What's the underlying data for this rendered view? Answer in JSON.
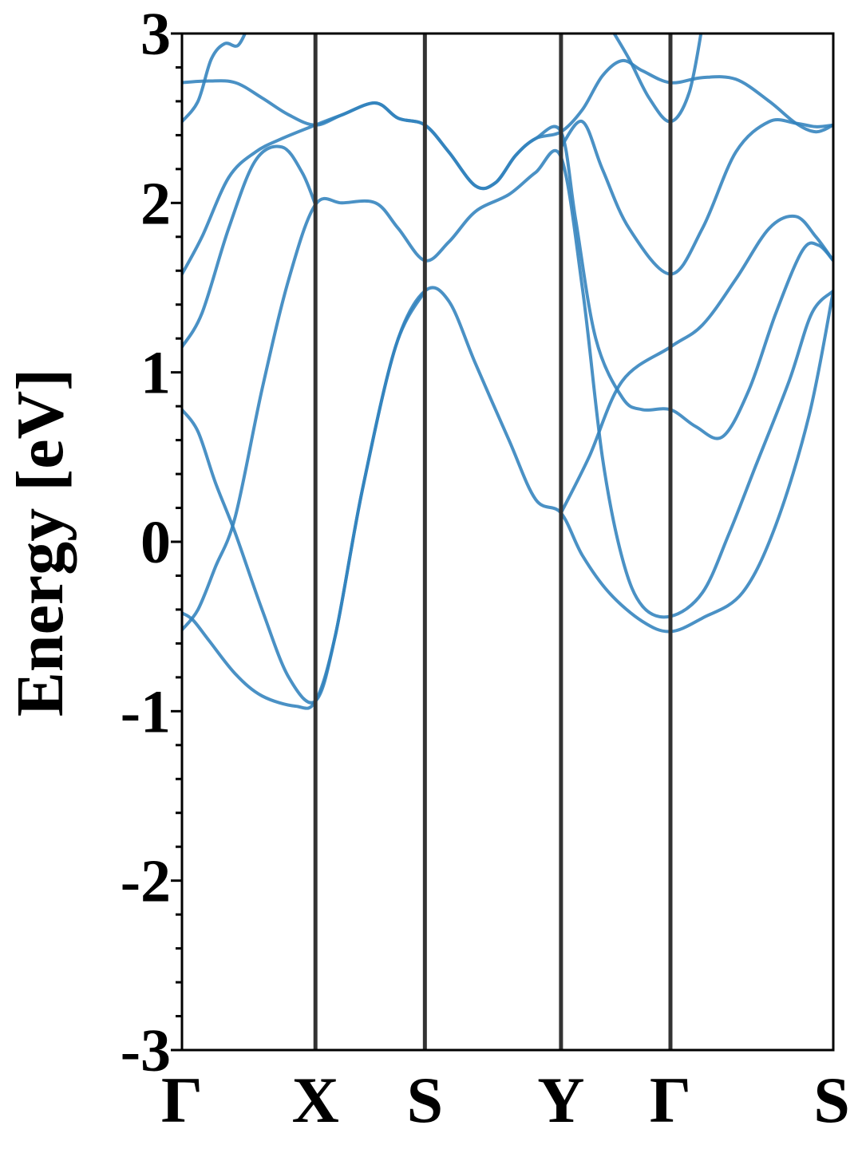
{
  "chart_data": {
    "type": "line",
    "title": "",
    "xlabel": "",
    "ylabel": "Energy [eV]",
    "ylim": [
      -3,
      3
    ],
    "yticks": [
      3,
      2,
      1,
      0,
      -1,
      -2,
      -3
    ],
    "ytick_labels": [
      "3",
      "2",
      "1",
      "0",
      "-1",
      "-2",
      "-3"
    ],
    "y_minor_step": 0.2,
    "xlim": [
      0,
      4.88
    ],
    "kpoints": [
      {
        "label": "Γ",
        "x": 0.0
      },
      {
        "label": "X",
        "x": 1.0
      },
      {
        "label": "S",
        "x": 1.82
      },
      {
        "label": "Y",
        "x": 2.84
      },
      {
        "label": "Γ",
        "x": 3.66
      },
      {
        "label": "S",
        "x": 4.88
      }
    ],
    "grid": false,
    "band_color": "#3182bd",
    "kline_color": "#333333",
    "series": [
      {
        "values": [
          [
            0,
            -0.42
          ],
          [
            0.08,
            -0.46
          ],
          [
            0.2,
            -0.58
          ],
          [
            0.4,
            -0.78
          ],
          [
            0.6,
            -0.91
          ],
          [
            0.85,
            -0.97
          ],
          [
            1.0,
            -0.94
          ],
          [
            1.15,
            -0.55
          ],
          [
            1.35,
            0.3
          ],
          [
            1.6,
            1.15
          ],
          [
            1.82,
            1.48
          ],
          [
            2.0,
            1.42
          ],
          [
            2.2,
            1.05
          ],
          [
            2.45,
            0.6
          ],
          [
            2.65,
            0.25
          ],
          [
            2.84,
            0.17
          ],
          [
            3.0,
            -0.08
          ],
          [
            3.2,
            -0.3
          ],
          [
            3.45,
            -0.47
          ],
          [
            3.66,
            -0.53
          ],
          [
            3.9,
            -0.45
          ],
          [
            4.2,
            -0.3
          ],
          [
            4.45,
            0.1
          ],
          [
            4.7,
            0.75
          ],
          [
            4.88,
            1.48
          ]
        ]
      },
      {
        "values": [
          [
            0,
            0.78
          ],
          [
            0.12,
            0.65
          ],
          [
            0.25,
            0.35
          ],
          [
            0.4,
            0.05
          ],
          [
            0.6,
            -0.4
          ],
          [
            0.8,
            -0.8
          ],
          [
            1.0,
            -0.94
          ],
          [
            1.15,
            -0.55
          ],
          [
            1.35,
            0.3
          ],
          [
            1.6,
            1.15
          ],
          [
            1.82,
            1.48
          ]
        ]
      },
      {
        "values": [
          [
            0,
            -0.52
          ],
          [
            0.12,
            -0.4
          ],
          [
            0.25,
            -0.15
          ],
          [
            0.4,
            0.15
          ],
          [
            0.6,
            0.9
          ],
          [
            0.8,
            1.55
          ],
          [
            1.0,
            1.99
          ],
          [
            1.2,
            2.0
          ],
          [
            1.45,
            2.0
          ],
          [
            1.62,
            1.85
          ],
          [
            1.82,
            1.66
          ],
          [
            2.0,
            1.77
          ],
          [
            2.2,
            1.95
          ],
          [
            2.45,
            2.05
          ],
          [
            2.65,
            2.18
          ],
          [
            2.84,
            2.27
          ],
          [
            3.0,
            1.5
          ],
          [
            3.15,
            0.5
          ],
          [
            3.3,
            -0.1
          ],
          [
            3.45,
            -0.38
          ],
          [
            3.66,
            -0.44
          ],
          [
            3.9,
            -0.3
          ],
          [
            4.1,
            0.05
          ],
          [
            4.3,
            0.45
          ],
          [
            4.55,
            0.95
          ],
          [
            4.72,
            1.35
          ],
          [
            4.88,
            1.48
          ]
        ]
      },
      {
        "values": [
          [
            0,
            1.15
          ],
          [
            0.15,
            1.35
          ],
          [
            0.35,
            1.85
          ],
          [
            0.55,
            2.25
          ],
          [
            0.75,
            2.33
          ],
          [
            0.9,
            2.18
          ],
          [
            1.0,
            1.99
          ]
        ]
      },
      {
        "values": [
          [
            0,
            1.58
          ],
          [
            0.15,
            1.8
          ],
          [
            0.35,
            2.15
          ],
          [
            0.55,
            2.3
          ],
          [
            0.75,
            2.38
          ],
          [
            1.0,
            2.46
          ],
          [
            1.2,
            2.52
          ],
          [
            1.45,
            2.59
          ],
          [
            1.62,
            2.5
          ],
          [
            1.82,
            2.46
          ],
          [
            2.0,
            2.3
          ],
          [
            2.2,
            2.1
          ],
          [
            2.35,
            2.12
          ],
          [
            2.5,
            2.28
          ],
          [
            2.65,
            2.38
          ],
          [
            2.84,
            2.42
          ],
          [
            3.0,
            2.55
          ],
          [
            3.15,
            2.75
          ],
          [
            3.3,
            2.84
          ],
          [
            3.45,
            2.78
          ],
          [
            3.66,
            2.71
          ],
          [
            3.9,
            2.74
          ],
          [
            4.15,
            2.73
          ],
          [
            4.4,
            2.6
          ],
          [
            4.6,
            2.47
          ],
          [
            4.75,
            2.42
          ],
          [
            4.88,
            2.46
          ]
        ]
      },
      {
        "values": [
          [
            0,
            2.71
          ],
          [
            0.2,
            2.72
          ],
          [
            0.4,
            2.71
          ],
          [
            0.6,
            2.62
          ],
          [
            0.8,
            2.52
          ],
          [
            1.0,
            2.46
          ],
          [
            1.2,
            2.52
          ],
          [
            1.45,
            2.59
          ],
          [
            1.62,
            2.5
          ],
          [
            1.82,
            2.46
          ],
          [
            2.0,
            2.3
          ],
          [
            2.2,
            2.1
          ],
          [
            2.35,
            2.12
          ],
          [
            2.5,
            2.28
          ],
          [
            2.65,
            2.38
          ],
          [
            2.84,
            2.42
          ],
          [
            2.95,
            1.9
          ],
          [
            3.1,
            1.2
          ],
          [
            3.3,
            0.85
          ],
          [
            3.45,
            0.78
          ],
          [
            3.66,
            0.78
          ],
          [
            3.85,
            0.68
          ],
          [
            4.05,
            0.62
          ],
          [
            4.25,
            0.9
          ],
          [
            4.45,
            1.35
          ],
          [
            4.65,
            1.72
          ],
          [
            4.77,
            1.75
          ],
          [
            4.88,
            1.66
          ]
        ]
      },
      {
        "values": [
          [
            0,
            2.48
          ],
          [
            0.12,
            2.6
          ],
          [
            0.22,
            2.85
          ],
          [
            0.32,
            2.94
          ],
          [
            0.42,
            2.93
          ],
          [
            0.5,
            3.05
          ]
        ]
      },
      {
        "values": [
          [
            2.84,
            2.33
          ],
          [
            3.0,
            2.48
          ],
          [
            3.15,
            2.2
          ],
          [
            3.35,
            1.85
          ],
          [
            3.66,
            1.58
          ],
          [
            3.9,
            1.85
          ],
          [
            4.15,
            2.3
          ],
          [
            4.4,
            2.48
          ],
          [
            4.6,
            2.47
          ],
          [
            4.75,
            2.45
          ],
          [
            4.88,
            2.46
          ]
        ]
      },
      {
        "values": [
          [
            2.84,
            0.17
          ],
          [
            3.05,
            0.5
          ],
          [
            3.3,
            0.95
          ],
          [
            3.66,
            1.15
          ],
          [
            3.9,
            1.28
          ],
          [
            4.15,
            1.55
          ],
          [
            4.4,
            1.85
          ],
          [
            4.6,
            1.92
          ],
          [
            4.75,
            1.8
          ],
          [
            4.88,
            1.66
          ]
        ]
      },
      {
        "values": [
          [
            3.2,
            3.05
          ],
          [
            3.35,
            2.85
          ],
          [
            3.5,
            2.62
          ],
          [
            3.66,
            2.48
          ],
          [
            3.8,
            2.65
          ],
          [
            3.9,
            3.05
          ]
        ]
      }
    ]
  }
}
